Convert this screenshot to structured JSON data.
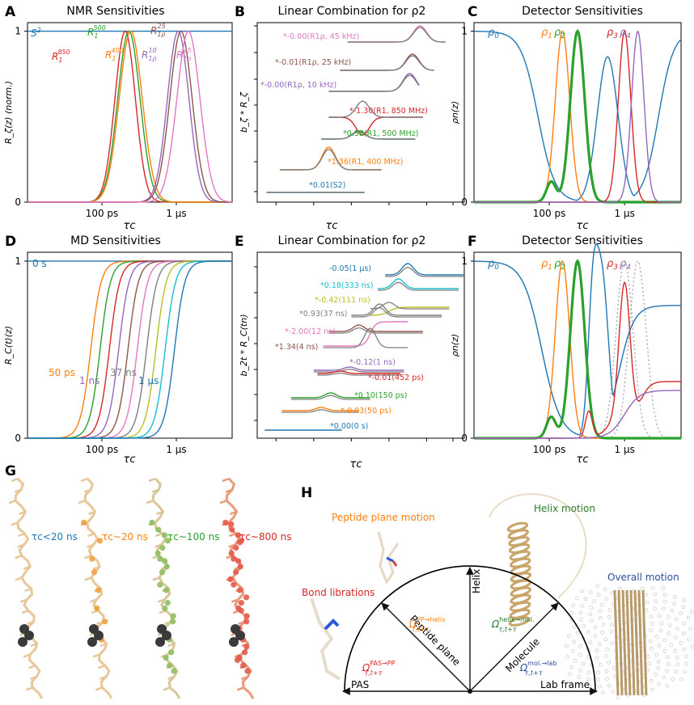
{
  "colors": {
    "blue": "#1f77b4",
    "orange": "#ff7f0e",
    "green": "#2ca02c",
    "red": "#d62728",
    "purple": "#9467bd",
    "brown": "#8c564b",
    "pink": "#e377c2",
    "gray": "#7f7f7f",
    "olive": "#bcbd22",
    "cyan": "#17becf",
    "dark": "#222222"
  },
  "panel_letters": [
    "A",
    "B",
    "C",
    "D",
    "E",
    "F",
    "G",
    "H"
  ],
  "chart_data": [
    {
      "id": "A",
      "type": "line",
      "title": "NMR Sensitivities",
      "ylabel": "R_ζ(z) (norm.)",
      "xlabel": "τc",
      "xlim": [
        -14,
        -3
      ],
      "ylim": [
        0,
        1.05
      ],
      "xticks": [
        {
          "v": -10,
          "label": "100 ps"
        },
        {
          "v": -6,
          "label": "1 μs"
        }
      ],
      "yticks": [
        {
          "v": 0,
          "label": "0"
        },
        {
          "v": 1,
          "label": "1"
        }
      ],
      "series": [
        {
          "name": "S2",
          "color": "blue",
          "kind": "flat",
          "value": 1
        },
        {
          "name": "R1_850",
          "color": "red",
          "center": -8.75,
          "width": 0.55
        },
        {
          "name": "R1_500",
          "color": "green",
          "center": -8.55,
          "width": 0.6
        },
        {
          "name": "R1_400",
          "color": "orange",
          "center": -8.45,
          "width": 0.62
        },
        {
          "name": "R1rho_10",
          "color": "purple",
          "center": -5.9,
          "width": 0.58
        },
        {
          "name": "R1rho_25",
          "color": "brown",
          "center": -5.75,
          "width": 0.6
        },
        {
          "name": "R1rho_45",
          "color": "pink",
          "center": -5.35,
          "width": 0.62
        }
      ],
      "labels": [
        {
          "base": "S",
          "sup": "2",
          "color": "blue"
        },
        {
          "base": "R",
          "sub": "1",
          "sup": "850",
          "color": "red"
        },
        {
          "base": "R",
          "sub": "1",
          "sup": "500",
          "color": "green"
        },
        {
          "base": "R",
          "sub": "1",
          "sup": "400",
          "color": "orange"
        },
        {
          "base": "R",
          "sub": "1ρ",
          "sup": "10",
          "color": "purple"
        },
        {
          "base": "R",
          "sub": "1ρ",
          "sup": "25",
          "color": "brown"
        },
        {
          "base": "R",
          "sub": "1ρ",
          "sup": "45",
          "color": "pink"
        }
      ]
    },
    {
      "id": "B",
      "type": "line",
      "title": "Linear Combination for ρ2",
      "ylabel": "b_ζ * R_ζ",
      "xlabel": "τc",
      "terms": [
        {
          "label": "*-0.00(R1ρ, 45 kHz)",
          "color": "pink"
        },
        {
          "label": "*-0.01(R1ρ, 25 kHz)",
          "color": "brown"
        },
        {
          "label": "*-0.00(R1ρ, 10 kHz)",
          "color": "purple"
        },
        {
          "label": "*-1.30(R1, 850 MHz)",
          "color": "red"
        },
        {
          "label": "*0.58(R1, 500 MHz)",
          "color": "green"
        },
        {
          "label": "*1.36(R1, 400 MHz)",
          "color": "orange"
        },
        {
          "label": "*0.01(S2)",
          "color": "blue"
        }
      ]
    },
    {
      "id": "C",
      "type": "line",
      "title": "Detector Sensitivities",
      "ylabel": "ρn(z)",
      "xlabel": "τc",
      "xticks": [
        {
          "v": -10,
          "label": "100 ps"
        },
        {
          "v": -6,
          "label": "1 μs"
        }
      ],
      "yticks": [
        {
          "v": 0,
          "label": "0"
        },
        {
          "v": 1,
          "label": "1"
        }
      ],
      "legend": [
        "ρ0",
        "ρ1",
        "ρ2",
        "ρ3",
        "ρ4"
      ]
    },
    {
      "id": "D",
      "type": "line",
      "title": "MD Sensitivities",
      "ylabel": "R_C(t)(z)",
      "xlabel": "τc",
      "xticks": [
        {
          "v": -10,
          "label": "100 ps"
        },
        {
          "v": -6,
          "label": "1 μs"
        }
      ],
      "yticks": [
        {
          "v": 0,
          "label": "0"
        },
        {
          "v": 1,
          "label": "1"
        }
      ],
      "flat_label": "0 s",
      "curve_labels": [
        "50 ps",
        "1 ns",
        "37 ns",
        "1 μs"
      ],
      "centers": [
        -10.6,
        -10.1,
        -9.6,
        -9.1,
        -8.6,
        -8.1,
        -7.6,
        -7.1,
        -6.6,
        -6.1
      ],
      "series_colors": [
        "orange",
        "green",
        "red",
        "purple",
        "brown",
        "pink",
        "gray",
        "olive",
        "cyan",
        "blue"
      ]
    },
    {
      "id": "E",
      "type": "line",
      "title": "Linear Combination for ρ2",
      "ylabel": "b_2t * R_C(tn)",
      "xlabel": "τc",
      "terms": [
        {
          "label": "-0.05(1 μs)",
          "color": "blue"
        },
        {
          "label": "*0.18(333 ns)",
          "color": "cyan"
        },
        {
          "label": "*-0.42(111 ns)",
          "color": "olive"
        },
        {
          "label": "*0.93(37 ns)",
          "color": "gray"
        },
        {
          "label": "*-2.00(12 ns)",
          "color": "pink"
        },
        {
          "label": "*1.34(4 ns)",
          "color": "brown"
        },
        {
          "label": "*-0.12(1 ns)",
          "color": "purple"
        },
        {
          "label": "*-0.01(452 ps)",
          "color": "red"
        },
        {
          "label": "*0.10(150 ps)",
          "color": "green"
        },
        {
          "label": "*-0.03(50 ps)",
          "color": "orange"
        },
        {
          "label": "*0.00(0 s)",
          "color": "blue"
        }
      ]
    },
    {
      "id": "F",
      "type": "line",
      "title": "Detector Sensitivities",
      "ylabel": "ρn(z)",
      "xlabel": "τc",
      "xticks": [
        {
          "v": -10,
          "label": "100 ps"
        },
        {
          "v": -6,
          "label": "1 μs"
        }
      ],
      "yticks": [
        {
          "v": 0,
          "label": "0"
        },
        {
          "v": 1,
          "label": "1"
        }
      ],
      "legend": [
        "ρ0",
        "ρ1",
        "ρ2",
        "ρ3",
        "ρ4"
      ]
    }
  ],
  "panel_g": {
    "labels": [
      {
        "text": "τc<20 ns",
        "color": "blue"
      },
      {
        "text": "τc~20 ns",
        "color": "orange"
      },
      {
        "text": "τc~100 ns",
        "color": "green"
      },
      {
        "text": "τc~800 ns",
        "color": "red"
      }
    ]
  },
  "panel_h": {
    "motions": [
      {
        "text": "Peptide plane motion",
        "color": "orange"
      },
      {
        "text": "Helix motion",
        "color": "darkgreen"
      },
      {
        "text": "Bond librations",
        "color": "red"
      },
      {
        "text": "Overall motion",
        "color": "navy"
      }
    ],
    "frames": [
      "PAS",
      "Peptide plane",
      "Helix",
      "Molecule",
      "Lab frame"
    ],
    "omegas": [
      {
        "sup": "PAS→PP",
        "color": "red"
      },
      {
        "sup": "PP→helix",
        "color": "orange"
      },
      {
        "sup": "helix→mol.",
        "color": "darkgreen"
      },
      {
        "sup": "mol.→lab",
        "color": "navy"
      }
    ],
    "omega_sub": "τ,t+τ"
  }
}
